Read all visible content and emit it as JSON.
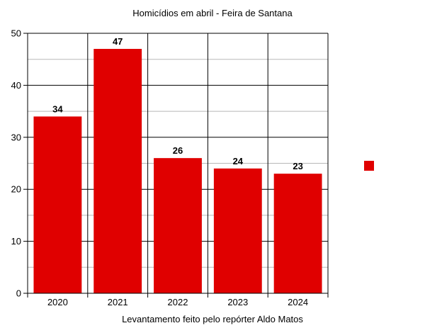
{
  "chart_data": {
    "type": "bar",
    "title": "Homicídios em abril - Feira de Santana",
    "xlabel": "Levantamento feito pelo repórter Aldo Matos",
    "ylabel": "",
    "categories": [
      "2020",
      "2021",
      "2022",
      "2023",
      "2024"
    ],
    "values": [
      34,
      47,
      26,
      24,
      23
    ],
    "ylim": [
      0,
      50
    ],
    "yticks": [
      0,
      10,
      20,
      30,
      40,
      50
    ],
    "grid": "on",
    "legend": "right",
    "bar_color": "#e00000"
  }
}
